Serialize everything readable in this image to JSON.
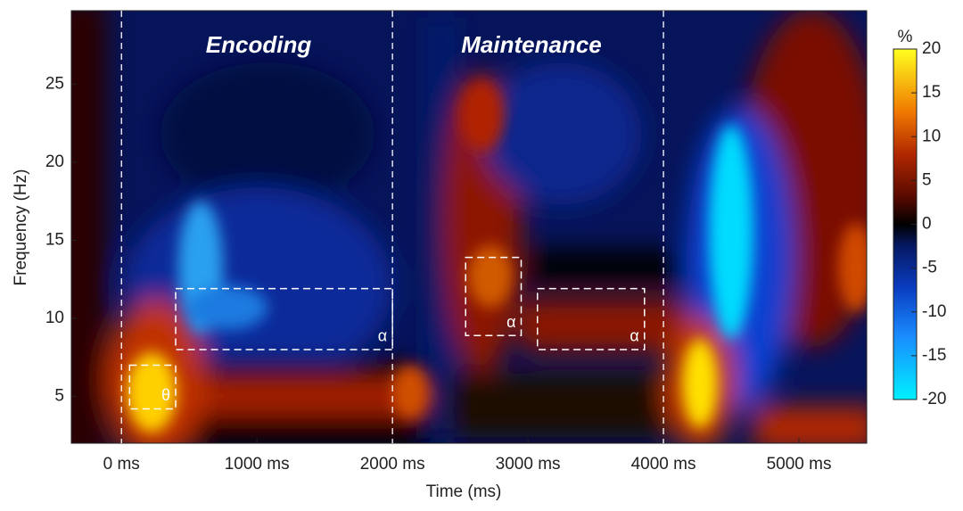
{
  "chart_data": {
    "type": "heatmap",
    "x_label": "Time (ms)",
    "y_label": "Frequency (Hz)",
    "colorbar_label": "%",
    "xlim": [
      -370,
      5500
    ],
    "ylim": [
      2,
      29.7
    ],
    "xticks": [
      {
        "value": 0,
        "label": "0 ms"
      },
      {
        "value": 1000,
        "label": "1000 ms"
      },
      {
        "value": 2000,
        "label": "2000 ms"
      },
      {
        "value": 3000,
        "label": "3000 ms"
      },
      {
        "value": 4000,
        "label": "4000 ms"
      },
      {
        "value": 5000,
        "label": "5000 ms"
      }
    ],
    "yticks": [
      5,
      10,
      15,
      20,
      25
    ],
    "clim": [
      -20,
      20
    ],
    "cticks": [
      20,
      15,
      10,
      5,
      0,
      -5,
      -10,
      -15,
      -20
    ],
    "annotations": [
      "Encoding",
      "Maintenance"
    ],
    "event_lines": [
      0,
      2000,
      4000
    ],
    "regions": [
      {
        "label": "θ",
        "time": [
          60,
          400
        ],
        "freq": [
          4.2,
          7.0
        ]
      },
      {
        "label": "α",
        "time": [
          400,
          2000
        ],
        "freq": [
          8.0,
          11.9
        ]
      },
      {
        "label": "α",
        "time": [
          2540,
          2950
        ],
        "freq": [
          8.9,
          13.9
        ]
      },
      {
        "label": "α",
        "time": [
          3070,
          3860
        ],
        "freq": [
          8.0,
          11.9
        ]
      }
    ]
  }
}
